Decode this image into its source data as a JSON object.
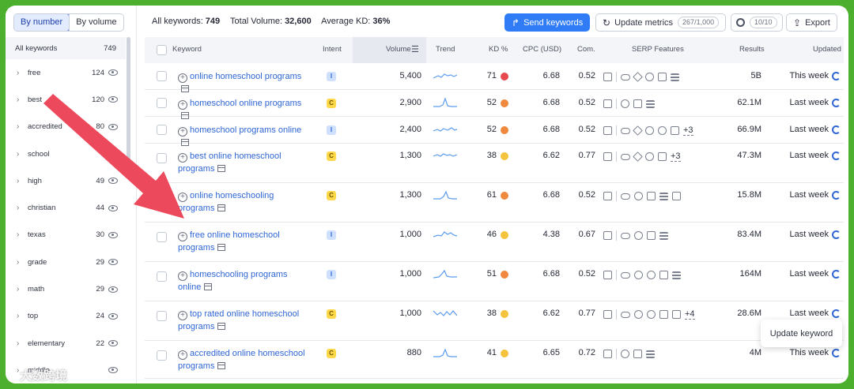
{
  "toggle": {
    "by_number": "By number",
    "by_volume": "By volume"
  },
  "sidebar": {
    "header_label": "All keywords",
    "header_count": "749",
    "items": [
      {
        "label": "free",
        "count": "124"
      },
      {
        "label": "best",
        "count": "120"
      },
      {
        "label": "accredited",
        "count": "80"
      },
      {
        "label": "school",
        "count": ""
      },
      {
        "label": "high",
        "count": "49"
      },
      {
        "label": "christian",
        "count": "44"
      },
      {
        "label": "texas",
        "count": "30"
      },
      {
        "label": "grade",
        "count": "29"
      },
      {
        "label": "math",
        "count": "29"
      },
      {
        "label": "top",
        "count": "24"
      },
      {
        "label": "elementary",
        "count": "22"
      },
      {
        "label": "middle",
        "count": ""
      }
    ]
  },
  "summary": {
    "all_keywords_label": "All keywords:",
    "all_keywords_value": "749",
    "total_volume_label": "Total Volume:",
    "total_volume_value": "32,600",
    "avg_kd_label": "Average KD:",
    "avg_kd_value": "36%"
  },
  "toolbar": {
    "send_keywords": "Send keywords",
    "update_metrics": "Update metrics",
    "update_metrics_count": "267/1,000",
    "settings_count": "10/10",
    "export": "Export"
  },
  "columns": {
    "keyword": "Keyword",
    "intent": "Intent",
    "volume": "Volume",
    "trend": "Trend",
    "kd": "KD %",
    "cpc": "CPC (USD)",
    "com": "Com.",
    "serp": "SERP Features",
    "results": "Results",
    "updated": "Updated"
  },
  "colors": {
    "kd_red": "#e5484d",
    "kd_orange": "#f0883e",
    "kd_yellow": "#f5c33b",
    "link": "#2f66d4",
    "primary": "#2f7cf6"
  },
  "rows": [
    {
      "keyword": "online homeschool programs",
      "intent": "I",
      "volume": "5,400",
      "kd": "71",
      "kd_color": "#e5484d",
      "cpc": "6.68",
      "com": "0.52",
      "serp_more": "",
      "results": "5B",
      "updated": "This week"
    },
    {
      "keyword": "homeschool online programs",
      "intent": "C",
      "volume": "2,900",
      "kd": "52",
      "kd_color": "#f0883e",
      "cpc": "6.68",
      "com": "0.52",
      "serp_more": "",
      "results": "62.1M",
      "updated": "Last week"
    },
    {
      "keyword": "homeschool programs online",
      "intent": "I",
      "volume": "2,400",
      "kd": "52",
      "kd_color": "#f0883e",
      "cpc": "6.68",
      "com": "0.52",
      "serp_more": "+3",
      "results": "66.9M",
      "updated": "Last week"
    },
    {
      "keyword": "best online homeschool programs",
      "intent": "C",
      "volume": "1,300",
      "kd": "38",
      "kd_color": "#f5c33b",
      "cpc": "6.62",
      "com": "0.77",
      "serp_more": "+3",
      "results": "47.3M",
      "updated": "Last week"
    },
    {
      "keyword": "online homeschooling programs",
      "intent": "C",
      "volume": "1,300",
      "kd": "61",
      "kd_color": "#f0883e",
      "cpc": "6.68",
      "com": "0.52",
      "serp_more": "",
      "results": "15.8M",
      "updated": "Last week"
    },
    {
      "keyword": "free online homeschool programs",
      "intent": "I",
      "volume": "1,000",
      "kd": "46",
      "kd_color": "#f5c33b",
      "cpc": "4.38",
      "com": "0.67",
      "serp_more": "",
      "results": "83.4M",
      "updated": "Last week"
    },
    {
      "keyword": "homeschooling programs online",
      "intent": "I",
      "volume": "1,000",
      "kd": "51",
      "kd_color": "#f0883e",
      "cpc": "6.68",
      "com": "0.52",
      "serp_more": "",
      "results": "164M",
      "updated": "Last week"
    },
    {
      "keyword": "top rated online homeschool programs",
      "intent": "C",
      "volume": "1,000",
      "kd": "38",
      "kd_color": "#f5c33b",
      "cpc": "6.62",
      "com": "0.77",
      "serp_more": "+4",
      "results": "28.6M",
      "updated": "Last week"
    },
    {
      "keyword": "accredited online homeschool programs",
      "intent": "C",
      "volume": "880",
      "kd": "41",
      "kd_color": "#f5c33b",
      "cpc": "6.65",
      "com": "0.72",
      "serp_more": "",
      "results": "4M",
      "updated": "This week"
    }
  ],
  "tooltip": {
    "text": "Update keyword"
  },
  "watermark": {
    "text": "大数跨境"
  }
}
